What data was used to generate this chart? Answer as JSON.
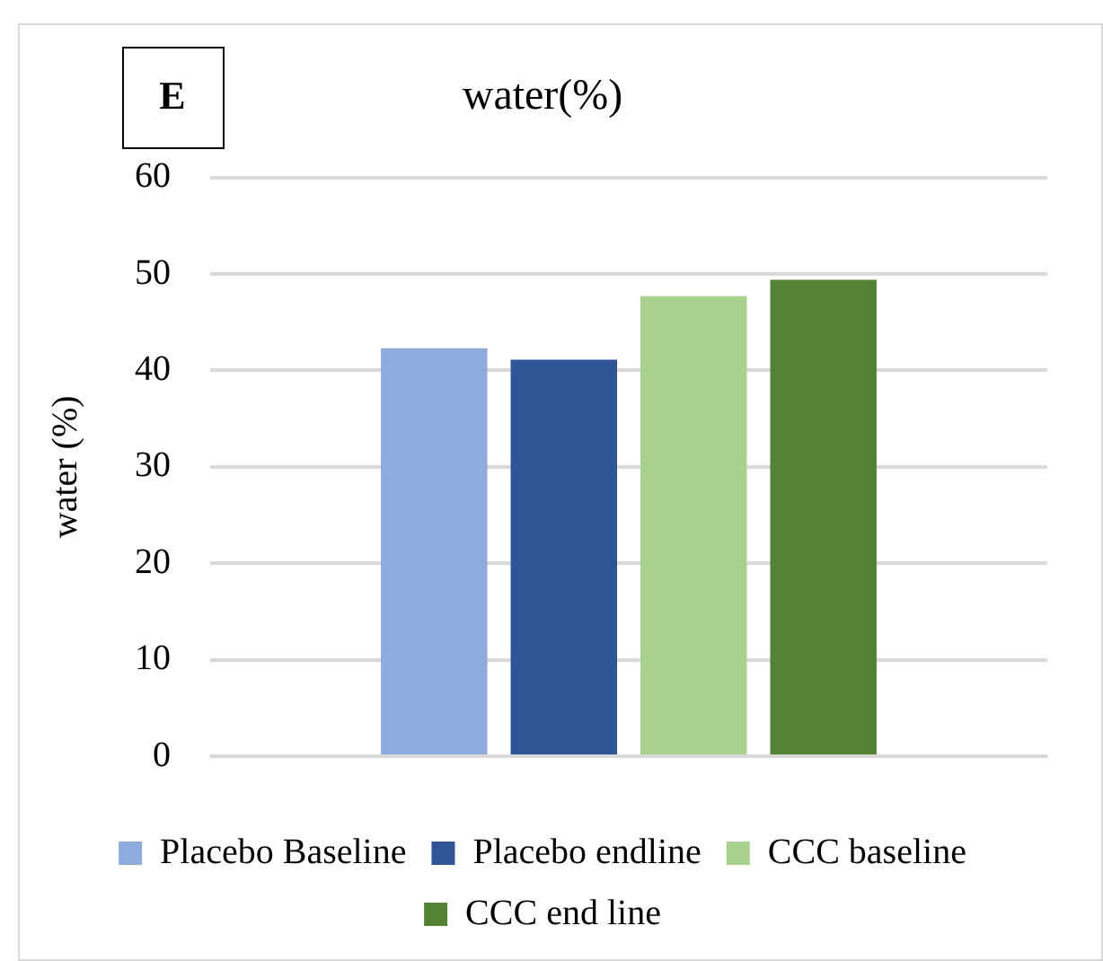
{
  "chart_data": {
    "type": "bar",
    "title": "water(%)",
    "ylabel": "water (%)",
    "annotations": [
      "E"
    ],
    "categories": [
      null
    ],
    "series": [
      {
        "name": "Placebo Baseline",
        "color": "#8faadc",
        "values": [
          42.3
        ]
      },
      {
        "name": "Placebo endline",
        "color": "#2f5597",
        "values": [
          41.1
        ]
      },
      {
        "name": "CCC baseline",
        "color": "#a9d18e",
        "values": [
          47.7
        ]
      },
      {
        "name": "CCC end line",
        "color": "#548235",
        "values": [
          49.4
        ]
      }
    ],
    "ylim": [
      0,
      60
    ],
    "yticks": [
      0,
      10,
      20,
      30,
      40,
      50,
      60
    ],
    "grid": "y",
    "legend": "bottom"
  }
}
